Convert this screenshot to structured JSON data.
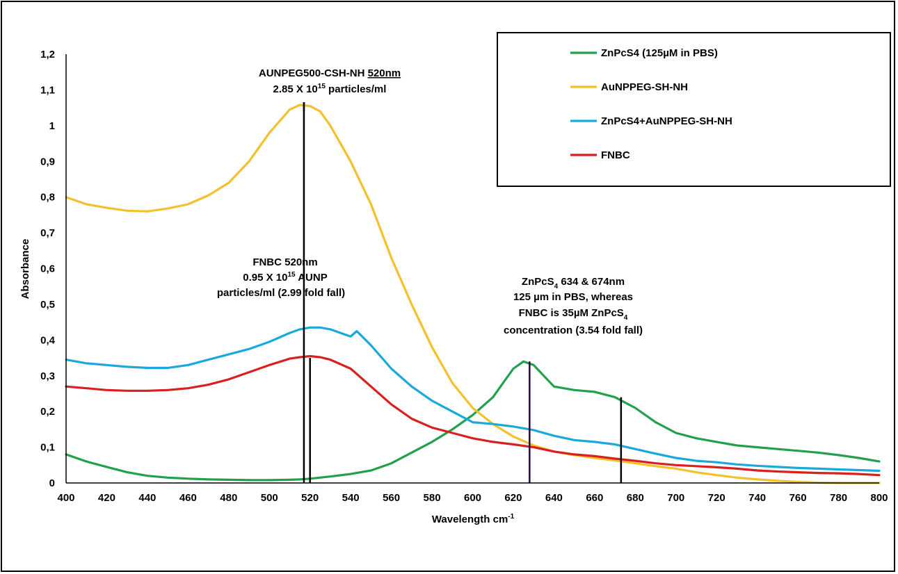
{
  "chart_data": {
    "type": "line",
    "xlabel": "Wavelength cm",
    "xlabel_sup": "-1",
    "ylabel": "Absorbance",
    "xlim": [
      400,
      800
    ],
    "ylim": [
      0,
      1.2
    ],
    "x_ticks": [
      "400",
      "420",
      "440",
      "460",
      "480",
      "500",
      "520",
      "540",
      "560",
      "580",
      "600",
      "620",
      "640",
      "660",
      "680",
      "700",
      "720",
      "740",
      "760",
      "780",
      "800"
    ],
    "y_ticks": [
      "0",
      "0,1",
      "0,2",
      "0,3",
      "0,4",
      "0,5",
      "0,6",
      "0,7",
      "0,8",
      "0,9",
      "1",
      "1,1",
      "1,2"
    ],
    "grid": false,
    "legend_position": "top-right",
    "series": [
      {
        "name": "ZnPcS4 (125µM in PBS)",
        "color": "#22a04b",
        "x": [
          400,
          410,
          420,
          430,
          440,
          450,
          460,
          470,
          480,
          490,
          500,
          510,
          515,
          520,
          530,
          540,
          550,
          560,
          570,
          580,
          590,
          600,
          610,
          615,
          620,
          625,
          630,
          635,
          640,
          650,
          660,
          670,
          680,
          690,
          700,
          710,
          720,
          730,
          740,
          750,
          760,
          770,
          780,
          790,
          800
        ],
        "y": [
          0.08,
          0.06,
          0.045,
          0.03,
          0.02,
          0.015,
          0.012,
          0.01,
          0.009,
          0.008,
          0.008,
          0.009,
          0.01,
          0.012,
          0.018,
          0.025,
          0.035,
          0.055,
          0.085,
          0.115,
          0.15,
          0.19,
          0.24,
          0.28,
          0.32,
          0.34,
          0.33,
          0.3,
          0.27,
          0.26,
          0.255,
          0.24,
          0.21,
          0.17,
          0.14,
          0.125,
          0.115,
          0.105,
          0.1,
          0.095,
          0.09,
          0.085,
          0.078,
          0.07,
          0.06
        ]
      },
      {
        "name": "AuNPPEG-SH-NH",
        "color": "#f4c12d",
        "x": [
          400,
          410,
          420,
          430,
          440,
          450,
          460,
          470,
          480,
          490,
          500,
          510,
          515,
          520,
          525,
          530,
          540,
          550,
          560,
          570,
          580,
          590,
          600,
          610,
          620,
          630,
          640,
          650,
          660,
          670,
          680,
          690,
          700,
          710,
          720,
          730,
          740,
          750,
          760,
          770,
          780,
          790,
          800
        ],
        "y": [
          0.8,
          0.78,
          0.77,
          0.762,
          0.76,
          0.768,
          0.78,
          0.805,
          0.84,
          0.9,
          0.98,
          1.045,
          1.058,
          1.055,
          1.04,
          1.0,
          0.9,
          0.78,
          0.63,
          0.5,
          0.38,
          0.28,
          0.21,
          0.165,
          0.13,
          0.105,
          0.088,
          0.078,
          0.07,
          0.063,
          0.055,
          0.047,
          0.04,
          0.03,
          0.022,
          0.015,
          0.01,
          0.006,
          0.003,
          0.001,
          0.0,
          0.0,
          0.0
        ]
      },
      {
        "name": "ZnPcS4+AuNPPEG-SH-NH",
        "color": "#1aa9db",
        "x": [
          400,
          410,
          420,
          430,
          440,
          450,
          460,
          470,
          480,
          490,
          500,
          510,
          515,
          520,
          525,
          530,
          535,
          540,
          543,
          550,
          560,
          570,
          580,
          590,
          600,
          610,
          620,
          630,
          640,
          650,
          660,
          670,
          680,
          690,
          700,
          710,
          720,
          730,
          740,
          750,
          760,
          770,
          780,
          790,
          800
        ],
        "y": [
          0.345,
          0.335,
          0.33,
          0.325,
          0.322,
          0.322,
          0.33,
          0.345,
          0.36,
          0.375,
          0.395,
          0.42,
          0.43,
          0.435,
          0.435,
          0.43,
          0.42,
          0.41,
          0.425,
          0.385,
          0.32,
          0.27,
          0.23,
          0.2,
          0.17,
          0.165,
          0.158,
          0.148,
          0.132,
          0.12,
          0.115,
          0.108,
          0.095,
          0.082,
          0.07,
          0.062,
          0.058,
          0.052,
          0.048,
          0.045,
          0.042,
          0.04,
          0.038,
          0.036,
          0.034
        ]
      },
      {
        "name": "FNBC",
        "color": "#d8201f",
        "x": [
          400,
          410,
          420,
          430,
          440,
          450,
          460,
          470,
          480,
          490,
          500,
          510,
          515,
          520,
          525,
          530,
          540,
          550,
          560,
          570,
          580,
          590,
          600,
          610,
          620,
          630,
          640,
          650,
          660,
          670,
          680,
          690,
          700,
          710,
          720,
          730,
          740,
          750,
          760,
          770,
          780,
          790,
          800
        ],
        "y": [
          0.27,
          0.265,
          0.26,
          0.258,
          0.258,
          0.26,
          0.265,
          0.275,
          0.29,
          0.31,
          0.33,
          0.348,
          0.352,
          0.355,
          0.352,
          0.345,
          0.32,
          0.27,
          0.22,
          0.18,
          0.155,
          0.14,
          0.125,
          0.115,
          0.108,
          0.1,
          0.088,
          0.08,
          0.075,
          0.068,
          0.062,
          0.055,
          0.05,
          0.047,
          0.044,
          0.04,
          0.035,
          0.032,
          0.03,
          0.028,
          0.027,
          0.025,
          0.022
        ]
      }
    ],
    "annotations": {
      "aunp": {
        "line1": "AUNPEG500-CSH-NH",
        "line1_ul": "520nm",
        "line2_pre": "2.85 X 10",
        "line2_sup": "15",
        "line2_post": " particles/ml"
      },
      "fnbc": {
        "line1": "FNBC 520nm",
        "line2_pre": "0.95 X 10",
        "line2_sup": "15",
        "line2_post": " AUNP",
        "line3": "particles/ml (2.99 fold fall)"
      },
      "znpcs": {
        "line1_pre": "ZnPcS",
        "line1_sub": "4",
        "line1_post": " 634 & 674nm",
        "line2": "125 µm in PBS, whereas",
        "line3_pre": "FNBC is 35µM ZnPcS",
        "line3_sub": "4",
        "line4": "concentration (3.54 fold fall)"
      }
    }
  }
}
